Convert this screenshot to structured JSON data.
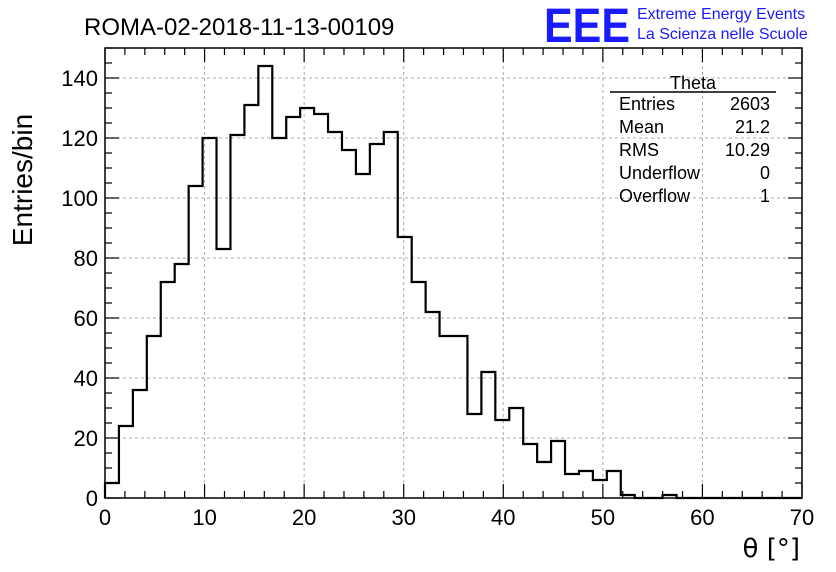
{
  "chart_data": {
    "type": "bar",
    "style": "step-histogram",
    "title": "ROMA-02-2018-11-13-00109",
    "xlabel": "θ [°]",
    "ylabel": "Entries/bin",
    "xlim": [
      0,
      70
    ],
    "ylim": [
      0,
      150
    ],
    "x_ticks": [
      0,
      10,
      20,
      30,
      40,
      50,
      60,
      70
    ],
    "y_ticks": [
      0,
      20,
      40,
      60,
      80,
      100,
      120,
      140
    ],
    "grid": true,
    "bin_width": 1.4,
    "bin_start": 0,
    "values": [
      5,
      24,
      36,
      54,
      72,
      78,
      104,
      120,
      83,
      121,
      131,
      144,
      120,
      127,
      130,
      128,
      122,
      116,
      108,
      118,
      122,
      87,
      72,
      62,
      54,
      54,
      28,
      42,
      26,
      30,
      18,
      12,
      19,
      8,
      9,
      6,
      9,
      1,
      0,
      0,
      1,
      0,
      0,
      0,
      0,
      0,
      0,
      0,
      0,
      0
    ],
    "stats": {
      "name": "Theta",
      "rows": [
        {
          "label": "Entries",
          "value": "2603"
        },
        {
          "label": "Mean",
          "value": "21.2"
        },
        {
          "label": "RMS",
          "value": "10.29"
        },
        {
          "label": "Underflow",
          "value": "0"
        },
        {
          "label": "Overflow",
          "value": "1"
        }
      ]
    }
  },
  "logo": {
    "mark": "EEE",
    "line1": "Extreme Energy Events",
    "line2": "La Scienza nelle Scuole",
    "color": "#1a1aff"
  }
}
